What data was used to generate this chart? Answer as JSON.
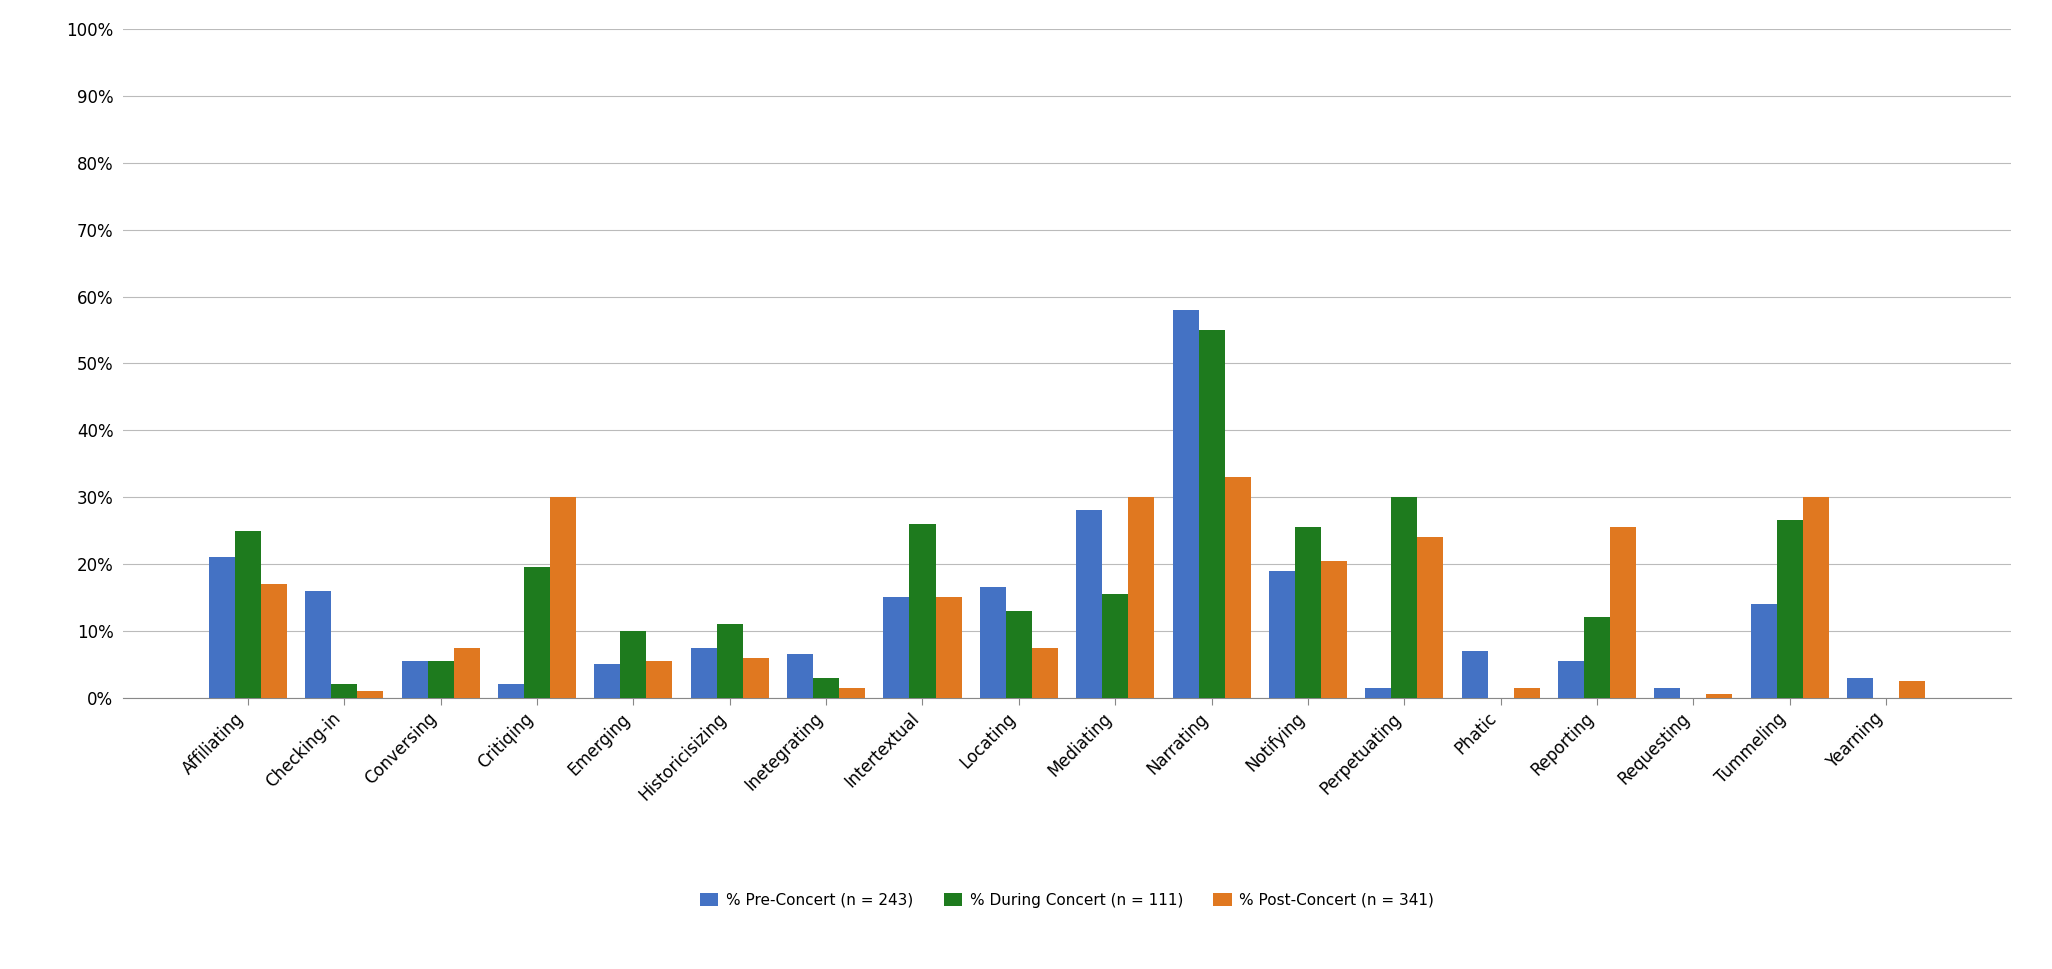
{
  "categories": [
    "Affiliating",
    "Checking-in",
    "Conversing",
    "Critiqing",
    "Emerging",
    "Historicisizing",
    "Inetegrating",
    "Intertextual",
    "Locating",
    "Mediating",
    "Narrating",
    "Notifying",
    "Perpetuating",
    "Phatic",
    "Reporting",
    "Requesting",
    "Tummeling",
    "Yearning"
  ],
  "pre_concert": [
    21,
    16,
    5.5,
    2,
    5,
    7.5,
    6.5,
    15,
    16.5,
    28,
    58,
    19,
    1.5,
    7,
    5.5,
    1.5,
    14,
    3
  ],
  "during_concert": [
    25,
    2,
    5.5,
    19.5,
    10,
    11,
    3,
    26,
    13,
    15.5,
    55,
    25.5,
    30,
    0,
    12,
    0,
    26.5,
    0
  ],
  "post_concert": [
    17,
    1,
    7.5,
    30,
    5.5,
    6,
    1.5,
    15,
    7.5,
    30,
    33,
    20.5,
    24,
    1.5,
    25.5,
    0.5,
    30,
    2.5
  ],
  "colors": {
    "pre": "#4472C4",
    "during": "#1E7B1E",
    "post": "#E07820"
  },
  "legend_labels": [
    "% Pre-Concert (n = 243)",
    "% During Concert (n = 111)",
    "% Post-Concert (n = 341)"
  ],
  "ylim_max": 100,
  "ytick_vals": [
    0,
    10,
    20,
    30,
    40,
    50,
    60,
    70,
    80,
    90,
    100
  ],
  "ytick_labels": [
    "0%",
    "10%",
    "20%",
    "30%",
    "40%",
    "50%",
    "60%",
    "70%",
    "80%",
    "90%",
    "100%"
  ],
  "background_color": "#FFFFFF",
  "grid_color": "#BBBBBB",
  "bar_width": 0.27,
  "tick_fontsize": 12,
  "legend_fontsize": 11
}
